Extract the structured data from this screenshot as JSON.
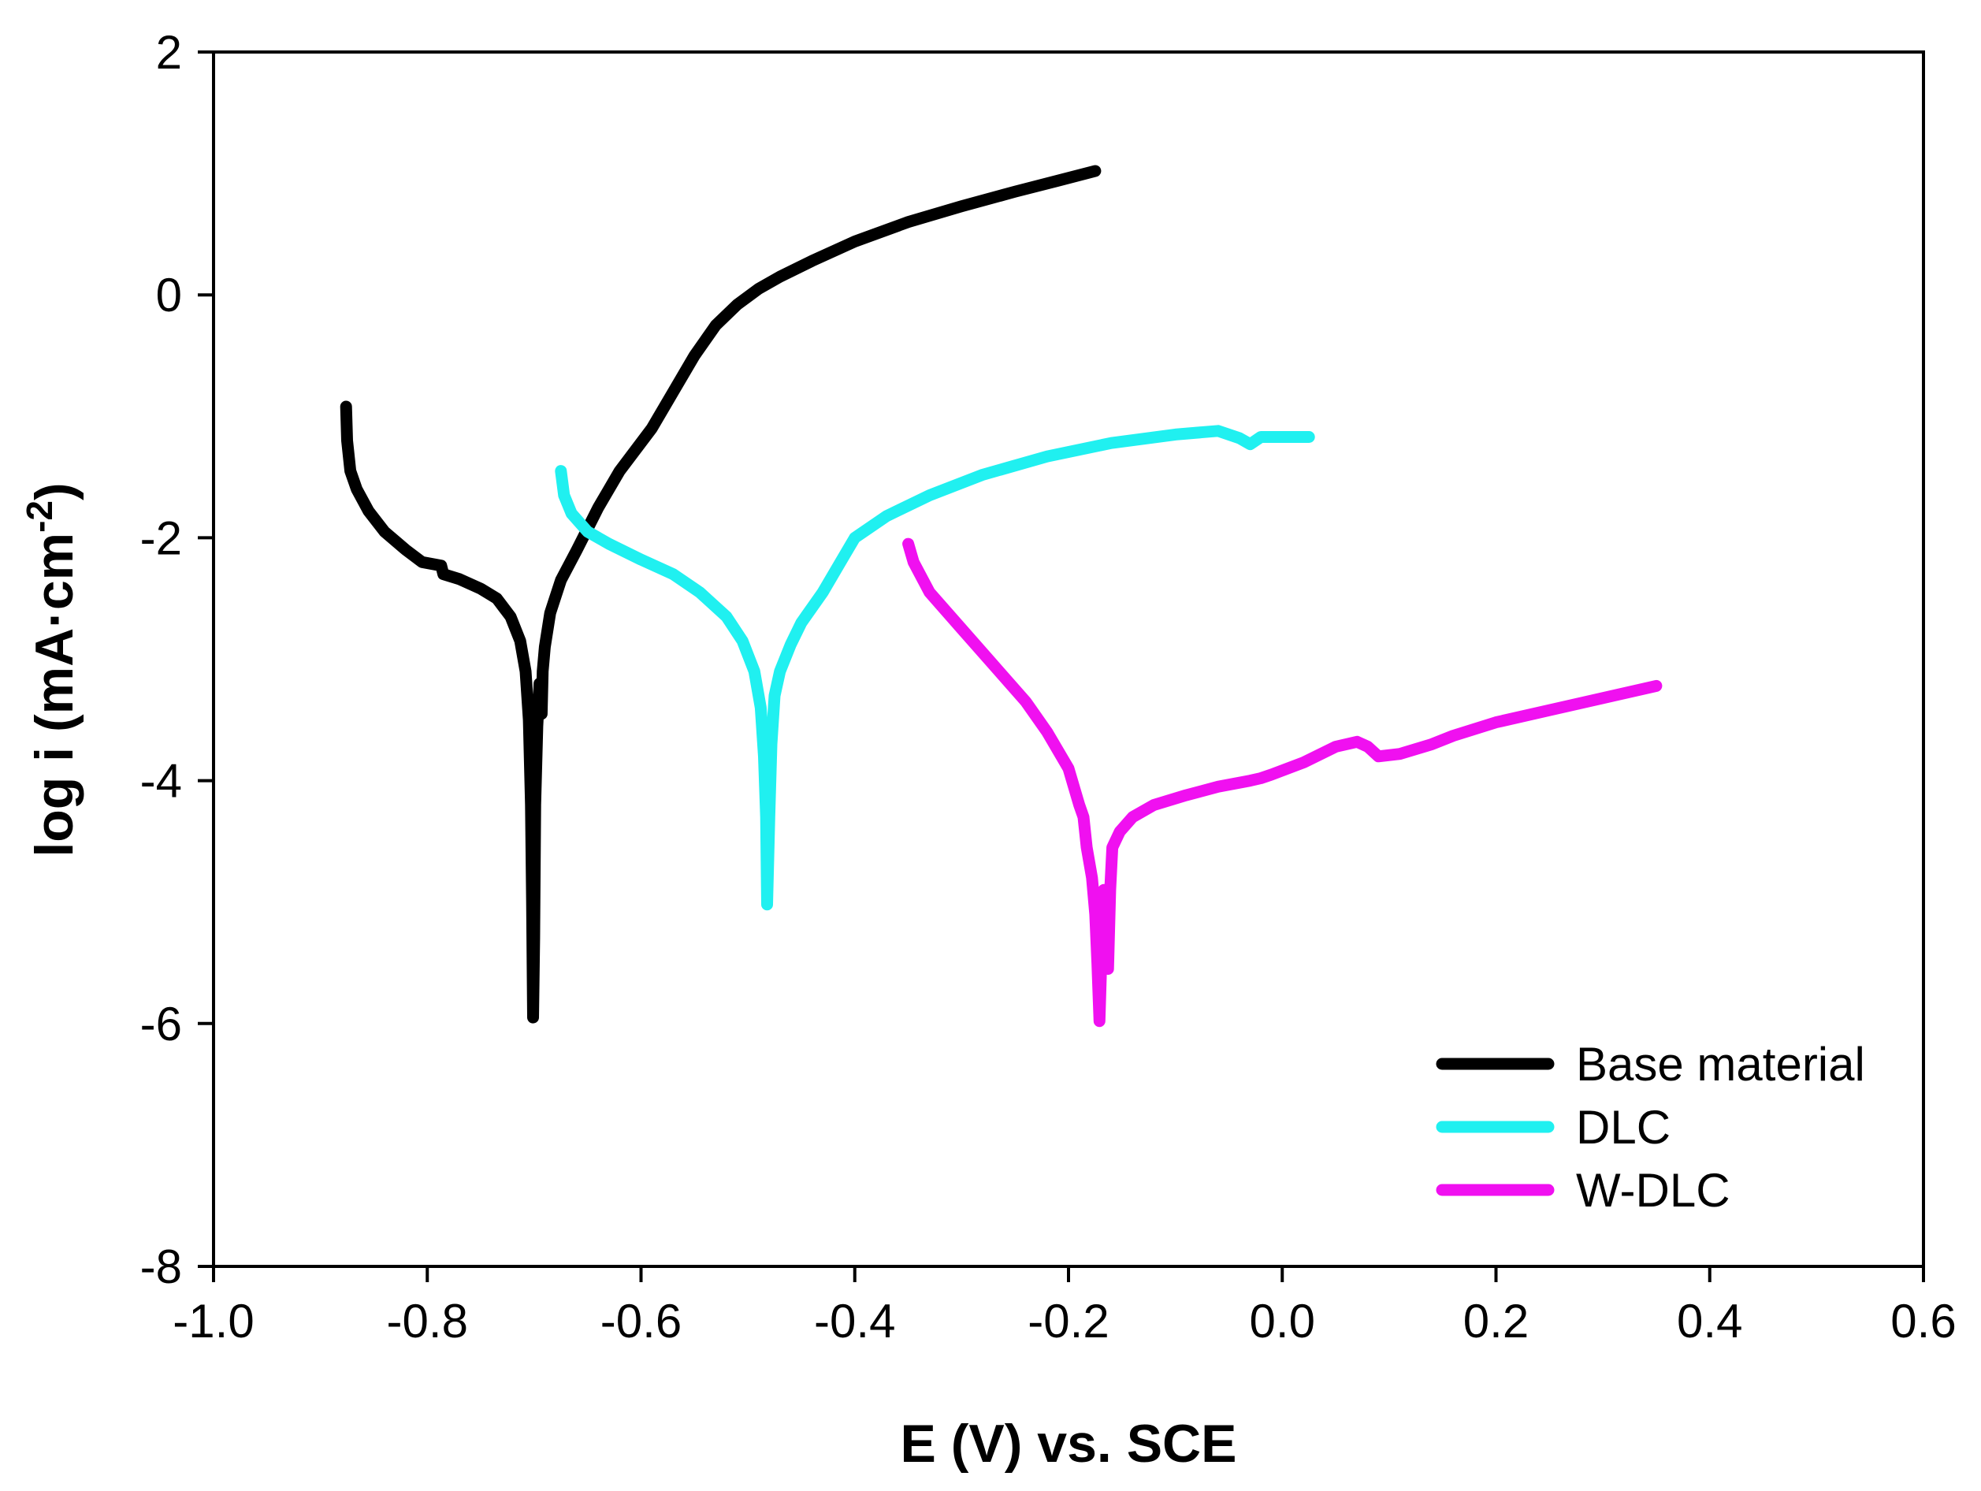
{
  "chart_data": {
    "type": "line",
    "title": "",
    "xlabel": "E (V) vs. SCE",
    "ylabel": {
      "main": "log i (mA·cm",
      "superscript": "-2",
      "close": ")"
    },
    "xlim": [
      -1.0,
      0.6
    ],
    "ylim": [
      -8,
      2
    ],
    "x_ticks": [
      -1.0,
      -0.8,
      -0.6,
      -0.4,
      -0.2,
      0.0,
      0.2,
      0.4,
      0.6
    ],
    "x_tick_labels": [
      "-1.0",
      "-0.8",
      "-0.6",
      "-0.4",
      "-0.2",
      "0.0",
      "0.2",
      "0.4",
      "0.6"
    ],
    "y_ticks": [
      2,
      0,
      -2,
      -4,
      -6,
      -8
    ],
    "y_tick_labels": [
      "2",
      "0",
      "-2",
      "-4",
      "-6",
      "-8"
    ],
    "grid": false,
    "legend_position": "bottom-right",
    "series": [
      {
        "name": "Base material",
        "color": "#000000",
        "points": [
          [
            -0.876,
            -0.92
          ],
          [
            -0.875,
            -1.2
          ],
          [
            -0.872,
            -1.45
          ],
          [
            -0.866,
            -1.6
          ],
          [
            -0.855,
            -1.78
          ],
          [
            -0.84,
            -1.95
          ],
          [
            -0.82,
            -2.1
          ],
          [
            -0.805,
            -2.2
          ],
          [
            -0.787,
            -2.23
          ],
          [
            -0.785,
            -2.3
          ],
          [
            -0.77,
            -2.34
          ],
          [
            -0.75,
            -2.42
          ],
          [
            -0.735,
            -2.5
          ],
          [
            -0.722,
            -2.65
          ],
          [
            -0.713,
            -2.85
          ],
          [
            -0.708,
            -3.1
          ],
          [
            -0.705,
            -3.5
          ],
          [
            -0.703,
            -4.2
          ],
          [
            -0.702,
            -5.0
          ],
          [
            -0.701,
            -5.95
          ],
          [
            -0.7,
            -5.3
          ],
          [
            -0.699,
            -4.2
          ],
          [
            -0.697,
            -3.55
          ],
          [
            -0.695,
            -3.2
          ],
          [
            -0.693,
            -3.45
          ],
          [
            -0.692,
            -3.1
          ],
          [
            -0.69,
            -2.9
          ],
          [
            -0.685,
            -2.62
          ],
          [
            -0.675,
            -2.35
          ],
          [
            -0.66,
            -2.1
          ],
          [
            -0.64,
            -1.75
          ],
          [
            -0.62,
            -1.45
          ],
          [
            -0.59,
            -1.1
          ],
          [
            -0.57,
            -0.8
          ],
          [
            -0.55,
            -0.5
          ],
          [
            -0.53,
            -0.25
          ],
          [
            -0.51,
            -0.08
          ],
          [
            -0.49,
            0.05
          ],
          [
            -0.47,
            0.15
          ],
          [
            -0.44,
            0.28
          ],
          [
            -0.4,
            0.44
          ],
          [
            -0.35,
            0.6
          ],
          [
            -0.3,
            0.73
          ],
          [
            -0.25,
            0.85
          ],
          [
            -0.21,
            0.94
          ],
          [
            -0.175,
            1.02
          ]
        ]
      },
      {
        "name": "DLC",
        "color": "#20F0F0",
        "points": [
          [
            -0.675,
            -1.45
          ],
          [
            -0.672,
            -1.65
          ],
          [
            -0.665,
            -1.8
          ],
          [
            -0.65,
            -1.95
          ],
          [
            -0.63,
            -2.05
          ],
          [
            -0.6,
            -2.18
          ],
          [
            -0.57,
            -2.3
          ],
          [
            -0.545,
            -2.45
          ],
          [
            -0.52,
            -2.65
          ],
          [
            -0.505,
            -2.85
          ],
          [
            -0.494,
            -3.1
          ],
          [
            -0.488,
            -3.4
          ],
          [
            -0.485,
            -3.8
          ],
          [
            -0.483,
            -4.3
          ],
          [
            -0.482,
            -5.02
          ],
          [
            -0.48,
            -4.3
          ],
          [
            -0.478,
            -3.7
          ],
          [
            -0.475,
            -3.3
          ],
          [
            -0.47,
            -3.1
          ],
          [
            -0.46,
            -2.88
          ],
          [
            -0.45,
            -2.7
          ],
          [
            -0.43,
            -2.45
          ],
          [
            -0.41,
            -2.15
          ],
          [
            -0.4,
            -2.0
          ],
          [
            -0.37,
            -1.82
          ],
          [
            -0.33,
            -1.65
          ],
          [
            -0.28,
            -1.48
          ],
          [
            -0.22,
            -1.33
          ],
          [
            -0.16,
            -1.22
          ],
          [
            -0.1,
            -1.15
          ],
          [
            -0.06,
            -1.12
          ],
          [
            -0.04,
            -1.18
          ],
          [
            -0.03,
            -1.23
          ],
          [
            -0.02,
            -1.17
          ],
          [
            0.025,
            -1.17
          ]
        ]
      },
      {
        "name": "W-DLC",
        "color": "#F010F0",
        "points": [
          [
            -0.35,
            -2.05
          ],
          [
            -0.345,
            -2.2
          ],
          [
            -0.33,
            -2.45
          ],
          [
            -0.3,
            -2.75
          ],
          [
            -0.27,
            -3.05
          ],
          [
            -0.24,
            -3.35
          ],
          [
            -0.22,
            -3.6
          ],
          [
            -0.2,
            -3.9
          ],
          [
            -0.19,
            -4.2
          ],
          [
            -0.186,
            -4.3
          ],
          [
            -0.183,
            -4.55
          ],
          [
            -0.178,
            -4.8
          ],
          [
            -0.175,
            -5.1
          ],
          [
            -0.173,
            -5.5
          ],
          [
            -0.171,
            -5.98
          ],
          [
            -0.169,
            -5.4
          ],
          [
            -0.167,
            -4.9
          ],
          [
            -0.165,
            -5.2
          ],
          [
            -0.163,
            -5.55
          ],
          [
            -0.161,
            -4.9
          ],
          [
            -0.159,
            -4.55
          ],
          [
            -0.152,
            -4.42
          ],
          [
            -0.14,
            -4.3
          ],
          [
            -0.12,
            -4.2
          ],
          [
            -0.09,
            -4.12
          ],
          [
            -0.06,
            -4.05
          ],
          [
            -0.03,
            -4.0
          ],
          [
            -0.02,
            -3.98
          ],
          [
            -0.01,
            -3.95
          ],
          [
            0.02,
            -3.85
          ],
          [
            0.05,
            -3.72
          ],
          [
            0.07,
            -3.68
          ],
          [
            0.08,
            -3.72
          ],
          [
            0.09,
            -3.8
          ],
          [
            0.11,
            -3.78
          ],
          [
            0.14,
            -3.7
          ],
          [
            0.16,
            -3.63
          ],
          [
            0.2,
            -3.52
          ],
          [
            0.25,
            -3.42
          ],
          [
            0.3,
            -3.32
          ],
          [
            0.35,
            -3.22
          ]
        ]
      }
    ]
  }
}
